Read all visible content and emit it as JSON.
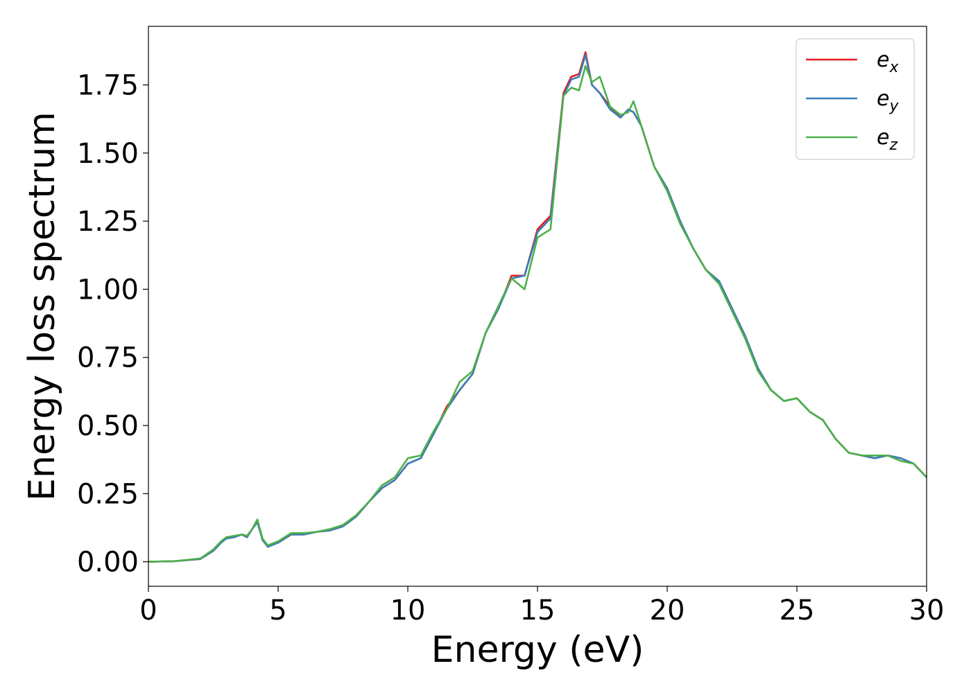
{
  "chart_data": {
    "type": "line",
    "title": "",
    "xlabel": "Energy (eV)",
    "ylabel": "Energy loss spectrum",
    "xlim": [
      0,
      30
    ],
    "ylim": [
      -0.09,
      1.965
    ],
    "xticks": [
      0,
      5,
      10,
      15,
      20,
      25,
      30
    ],
    "xtick_labels": [
      "0",
      "5",
      "10",
      "15",
      "20",
      "25",
      "30"
    ],
    "yticks": [
      0.0,
      0.25,
      0.5,
      0.75,
      1.0,
      1.25,
      1.5,
      1.75
    ],
    "ytick_labels": [
      "0.00",
      "0.25",
      "0.50",
      "0.75",
      "1.00",
      "1.25",
      "1.50",
      "1.75"
    ],
    "grid": false,
    "legend_position": "top-right",
    "x": [
      0,
      1,
      2,
      2.5,
      2.8,
      3.0,
      3.3,
      3.6,
      3.8,
      4.0,
      4.2,
      4.4,
      4.6,
      5.0,
      5.5,
      6.0,
      6.5,
      7.0,
      7.5,
      8.0,
      8.5,
      9.0,
      9.5,
      10.0,
      10.5,
      11.0,
      11.5,
      12.0,
      12.5,
      13.0,
      13.5,
      14.0,
      14.5,
      15.0,
      15.5,
      16.0,
      16.3,
      16.6,
      16.85,
      17.1,
      17.4,
      17.8,
      18.2,
      18.5,
      18.7,
      19.0,
      19.5,
      20.0,
      20.5,
      21.0,
      21.5,
      22.0,
      22.5,
      23.0,
      23.5,
      24.0,
      24.5,
      25.0,
      25.5,
      26.0,
      26.5,
      27.0,
      27.5,
      28.0,
      28.5,
      29.0,
      29.5,
      30.0
    ],
    "series": [
      {
        "name": "e_x",
        "legend_base": "e",
        "legend_sub": "x",
        "color": "#e41a1c",
        "values": [
          0.0,
          0.002,
          0.01,
          0.04,
          0.07,
          0.09,
          0.09,
          0.1,
          0.09,
          0.12,
          0.15,
          0.08,
          0.055,
          0.07,
          0.1,
          0.1,
          0.11,
          0.115,
          0.13,
          0.165,
          0.22,
          0.27,
          0.3,
          0.36,
          0.38,
          0.47,
          0.57,
          0.63,
          0.69,
          0.84,
          0.93,
          1.05,
          1.05,
          1.22,
          1.27,
          1.72,
          1.78,
          1.79,
          1.87,
          1.75,
          1.72,
          1.67,
          1.63,
          1.66,
          1.65,
          1.6,
          1.45,
          1.37,
          1.25,
          1.15,
          1.07,
          1.03,
          0.93,
          0.83,
          0.71,
          0.63,
          0.59,
          0.6,
          0.55,
          0.52,
          0.45,
          0.4,
          0.39,
          0.38,
          0.39,
          0.38,
          0.36,
          0.31
        ]
      },
      {
        "name": "e_y",
        "legend_base": "e",
        "legend_sub": "y",
        "color": "#377eb8",
        "values": [
          0.0,
          0.002,
          0.01,
          0.04,
          0.07,
          0.085,
          0.09,
          0.1,
          0.09,
          0.12,
          0.145,
          0.08,
          0.055,
          0.07,
          0.1,
          0.1,
          0.11,
          0.115,
          0.13,
          0.165,
          0.22,
          0.27,
          0.3,
          0.36,
          0.38,
          0.47,
          0.56,
          0.63,
          0.69,
          0.84,
          0.93,
          1.04,
          1.05,
          1.21,
          1.26,
          1.71,
          1.77,
          1.78,
          1.86,
          1.75,
          1.72,
          1.66,
          1.63,
          1.66,
          1.65,
          1.6,
          1.45,
          1.37,
          1.25,
          1.15,
          1.07,
          1.03,
          0.93,
          0.83,
          0.71,
          0.63,
          0.59,
          0.6,
          0.55,
          0.52,
          0.45,
          0.4,
          0.39,
          0.38,
          0.39,
          0.38,
          0.36,
          0.31
        ]
      },
      {
        "name": "e_z",
        "legend_base": "e",
        "legend_sub": "z",
        "color": "#4daf4a",
        "values": [
          0.0,
          0.002,
          0.012,
          0.045,
          0.075,
          0.09,
          0.095,
          0.1,
          0.095,
          0.12,
          0.155,
          0.085,
          0.06,
          0.075,
          0.105,
          0.105,
          0.11,
          0.12,
          0.135,
          0.17,
          0.22,
          0.28,
          0.31,
          0.38,
          0.39,
          0.48,
          0.56,
          0.66,
          0.7,
          0.84,
          0.94,
          1.04,
          1.0,
          1.19,
          1.22,
          1.71,
          1.74,
          1.73,
          1.82,
          1.76,
          1.78,
          1.67,
          1.64,
          1.65,
          1.69,
          1.6,
          1.45,
          1.36,
          1.24,
          1.15,
          1.07,
          1.02,
          0.92,
          0.82,
          0.7,
          0.63,
          0.59,
          0.6,
          0.55,
          0.52,
          0.45,
          0.4,
          0.39,
          0.39,
          0.39,
          0.37,
          0.36,
          0.31
        ]
      }
    ]
  }
}
